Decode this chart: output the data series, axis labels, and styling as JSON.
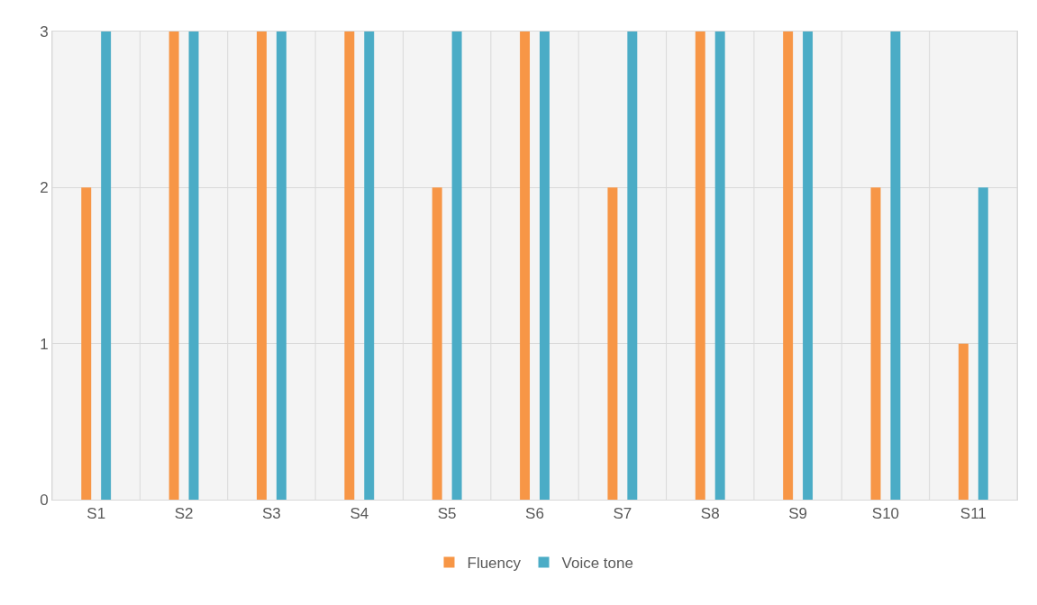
{
  "chart_data": {
    "type": "bar",
    "categories": [
      "S1",
      "S2",
      "S3",
      "S4",
      "S5",
      "S6",
      "S7",
      "S8",
      "S9",
      "S10",
      "S11"
    ],
    "series": [
      {
        "name": "Fluency",
        "color": "#f79646",
        "values": [
          2,
          3,
          3,
          3,
          2,
          3,
          2,
          3,
          3,
          2,
          1
        ]
      },
      {
        "name": "Voice tone",
        "color": "#4bacc6",
        "values": [
          3,
          3,
          3,
          3,
          3,
          3,
          3,
          3,
          3,
          3,
          2
        ]
      }
    ],
    "ylim": [
      0,
      3
    ],
    "yticks": [
      0,
      1,
      2,
      3
    ],
    "grid": true,
    "legend": "bottom"
  }
}
